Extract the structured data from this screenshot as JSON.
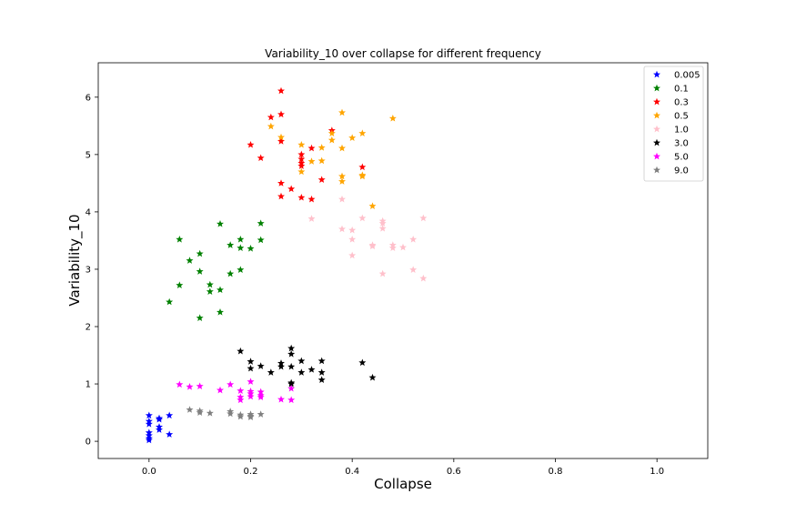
{
  "chart_data": {
    "type": "scatter",
    "title": "Variability_10 over collapse for different frequency",
    "xlabel": "Collapse",
    "ylabel": "Variability_10",
    "xlim": [
      -0.1,
      1.1
    ],
    "ylim": [
      -0.3,
      6.6
    ],
    "xticks": [
      "0.0",
      "0.2",
      "0.4",
      "0.6",
      "0.8",
      "1.0"
    ],
    "yticks": [
      "0",
      "1",
      "2",
      "3",
      "4",
      "5",
      "6"
    ],
    "grid": false,
    "legend_position": "top-right",
    "marker": "star",
    "series": [
      {
        "name": "0.005",
        "color": "#0000ff",
        "points": [
          [
            0,
            0.45
          ],
          [
            0,
            0.35
          ],
          [
            0,
            0.3
          ],
          [
            0,
            0.15
          ],
          [
            0,
            0.1
          ],
          [
            0,
            0.05
          ],
          [
            0,
            0.02
          ],
          [
            0.02,
            0.4
          ],
          [
            0.02,
            0.38
          ],
          [
            0.02,
            0.25
          ],
          [
            0.02,
            0.2
          ],
          [
            0.04,
            0.45
          ],
          [
            0.04,
            0.12
          ]
        ]
      },
      {
        "name": "0.1",
        "color": "#008000",
        "points": [
          [
            0.04,
            2.43
          ],
          [
            0.06,
            3.52
          ],
          [
            0.06,
            2.72
          ],
          [
            0.08,
            3.15
          ],
          [
            0.1,
            3.27
          ],
          [
            0.1,
            2.96
          ],
          [
            0.1,
            2.15
          ],
          [
            0.12,
            2.73
          ],
          [
            0.12,
            2.61
          ],
          [
            0.14,
            3.79
          ],
          [
            0.14,
            2.64
          ],
          [
            0.14,
            2.25
          ],
          [
            0.16,
            3.42
          ],
          [
            0.16,
            2.92
          ],
          [
            0.18,
            3.52
          ],
          [
            0.18,
            3.37
          ],
          [
            0.18,
            2.99
          ],
          [
            0.2,
            3.36
          ],
          [
            0.22,
            3.8
          ],
          [
            0.22,
            3.51
          ]
        ]
      },
      {
        "name": "0.3",
        "color": "#ff0000",
        "points": [
          [
            0.2,
            5.17
          ],
          [
            0.22,
            4.94
          ],
          [
            0.24,
            5.65
          ],
          [
            0.26,
            6.11
          ],
          [
            0.26,
            5.7
          ],
          [
            0.26,
            5.23
          ],
          [
            0.26,
            4.5
          ],
          [
            0.26,
            4.27
          ],
          [
            0.28,
            4.4
          ],
          [
            0.3,
            5.0
          ],
          [
            0.3,
            4.92
          ],
          [
            0.3,
            4.85
          ],
          [
            0.3,
            4.8
          ],
          [
            0.3,
            4.25
          ],
          [
            0.32,
            5.11
          ],
          [
            0.32,
            4.22
          ],
          [
            0.34,
            4.56
          ],
          [
            0.36,
            5.42
          ],
          [
            0.42,
            4.78
          ]
        ]
      },
      {
        "name": "0.5",
        "color": "#ffa500",
        "points": [
          [
            0.24,
            5.49
          ],
          [
            0.26,
            5.3
          ],
          [
            0.3,
            5.17
          ],
          [
            0.3,
            4.7
          ],
          [
            0.32,
            4.88
          ],
          [
            0.34,
            5.12
          ],
          [
            0.34,
            4.89
          ],
          [
            0.36,
            5.37
          ],
          [
            0.36,
            5.25
          ],
          [
            0.38,
            5.73
          ],
          [
            0.38,
            5.11
          ],
          [
            0.38,
            4.62
          ],
          [
            0.38,
            4.53
          ],
          [
            0.4,
            5.29
          ],
          [
            0.42,
            5.37
          ],
          [
            0.42,
            4.64
          ],
          [
            0.42,
            4.62
          ],
          [
            0.44,
            4.1
          ],
          [
            0.48,
            5.63
          ]
        ]
      },
      {
        "name": "1.0",
        "color": "#ffc0cb",
        "points": [
          [
            0.32,
            3.88
          ],
          [
            0.38,
            4.22
          ],
          [
            0.38,
            3.7
          ],
          [
            0.4,
            3.68
          ],
          [
            0.4,
            3.52
          ],
          [
            0.4,
            3.24
          ],
          [
            0.42,
            3.89
          ],
          [
            0.44,
            3.42
          ],
          [
            0.44,
            3.4
          ],
          [
            0.46,
            3.84
          ],
          [
            0.46,
            3.8
          ],
          [
            0.46,
            3.71
          ],
          [
            0.46,
            2.92
          ],
          [
            0.48,
            3.42
          ],
          [
            0.48,
            3.37
          ],
          [
            0.5,
            3.38
          ],
          [
            0.52,
            3.52
          ],
          [
            0.52,
            2.99
          ],
          [
            0.54,
            3.89
          ],
          [
            0.54,
            2.84
          ]
        ]
      },
      {
        "name": "3.0",
        "color": "#000000",
        "points": [
          [
            0.18,
            1.57
          ],
          [
            0.2,
            1.39
          ],
          [
            0.2,
            1.27
          ],
          [
            0.22,
            1.31
          ],
          [
            0.24,
            1.2
          ],
          [
            0.26,
            1.36
          ],
          [
            0.26,
            1.3
          ],
          [
            0.28,
            1.62
          ],
          [
            0.28,
            1.52
          ],
          [
            0.28,
            1.3
          ],
          [
            0.28,
            1.02
          ],
          [
            0.28,
            1.0
          ],
          [
            0.3,
            1.4
          ],
          [
            0.3,
            1.2
          ],
          [
            0.32,
            1.25
          ],
          [
            0.34,
            1.4
          ],
          [
            0.34,
            1.2
          ],
          [
            0.34,
            1.07
          ],
          [
            0.42,
            1.37
          ],
          [
            0.44,
            1.11
          ]
        ]
      },
      {
        "name": "5.0",
        "color": "#ff00ff",
        "points": [
          [
            0.06,
            0.99
          ],
          [
            0.08,
            0.95
          ],
          [
            0.1,
            0.96
          ],
          [
            0.14,
            0.89
          ],
          [
            0.16,
            0.99
          ],
          [
            0.18,
            0.88
          ],
          [
            0.18,
            0.77
          ],
          [
            0.18,
            0.72
          ],
          [
            0.2,
            1.04
          ],
          [
            0.2,
            0.87
          ],
          [
            0.2,
            0.83
          ],
          [
            0.2,
            0.78
          ],
          [
            0.22,
            0.86
          ],
          [
            0.22,
            0.8
          ],
          [
            0.22,
            0.77
          ],
          [
            0.26,
            0.73
          ],
          [
            0.28,
            0.92
          ],
          [
            0.28,
            0.72
          ]
        ]
      },
      {
        "name": "9.0",
        "color": "#808080",
        "points": [
          [
            0.08,
            0.55
          ],
          [
            0.1,
            0.53
          ],
          [
            0.1,
            0.5
          ],
          [
            0.12,
            0.49
          ],
          [
            0.16,
            0.52
          ],
          [
            0.16,
            0.48
          ],
          [
            0.18,
            0.46
          ],
          [
            0.18,
            0.43
          ],
          [
            0.2,
            0.47
          ],
          [
            0.2,
            0.44
          ],
          [
            0.2,
            0.42
          ],
          [
            0.22,
            0.47
          ]
        ]
      }
    ]
  }
}
